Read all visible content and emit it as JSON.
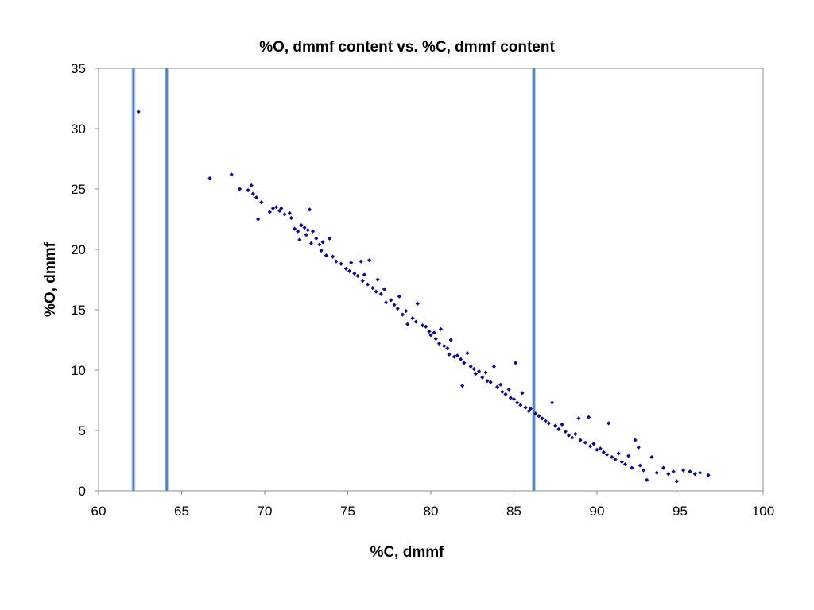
{
  "chart_data": {
    "type": "scatter",
    "title": "%O, dmmf content vs. %C, dmmf content",
    "xlabel": "%C, dmmf",
    "ylabel": "%O, dmmf",
    "xlim": [
      60,
      100
    ],
    "ylim": [
      0,
      35
    ],
    "x_ticks": [
      60,
      65,
      70,
      75,
      80,
      85,
      90,
      95,
      100
    ],
    "y_ticks": [
      0,
      5,
      10,
      15,
      20,
      25,
      30,
      35
    ],
    "grid": false,
    "legend": "none",
    "marker_color": "#0d0d7a",
    "reference_line_color": "#4f81bd",
    "vertical_reference_lines_x": [
      62.1,
      64.1,
      86.2
    ],
    "series": [
      {
        "marker": "diamond",
        "points": [
          [
            62.4,
            31.4
          ],
          [
            66.7,
            25.9
          ],
          [
            68.0,
            26.2
          ],
          [
            68.5,
            25.0
          ],
          [
            69.0,
            24.9
          ],
          [
            69.2,
            25.3
          ],
          [
            69.3,
            24.6
          ],
          [
            69.5,
            24.3
          ],
          [
            69.6,
            22.5
          ],
          [
            69.8,
            23.9
          ],
          [
            70.3,
            23.1
          ],
          [
            70.5,
            23.4
          ],
          [
            70.7,
            23.5
          ],
          [
            70.9,
            23.2
          ],
          [
            71.0,
            23.4
          ],
          [
            71.2,
            22.9
          ],
          [
            71.5,
            23.0
          ],
          [
            71.6,
            22.6
          ],
          [
            71.8,
            21.7
          ],
          [
            72.0,
            21.5
          ],
          [
            72.1,
            20.8
          ],
          [
            72.2,
            22.0
          ],
          [
            72.4,
            21.8
          ],
          [
            72.5,
            21.2
          ],
          [
            72.6,
            21.6
          ],
          [
            72.7,
            23.3
          ],
          [
            72.8,
            20.5
          ],
          [
            72.9,
            21.5
          ],
          [
            73.1,
            20.9
          ],
          [
            73.3,
            20.4
          ],
          [
            73.4,
            19.9
          ],
          [
            73.5,
            20.6
          ],
          [
            73.7,
            19.5
          ],
          [
            73.9,
            20.9
          ],
          [
            74.1,
            19.4
          ],
          [
            74.3,
            19.0
          ],
          [
            74.6,
            18.8
          ],
          [
            74.9,
            18.4
          ],
          [
            75.1,
            18.2
          ],
          [
            75.2,
            18.9
          ],
          [
            75.4,
            18.0
          ],
          [
            75.6,
            17.8
          ],
          [
            75.8,
            19.0
          ],
          [
            75.9,
            17.4
          ],
          [
            76.0,
            17.9
          ],
          [
            76.2,
            17.1
          ],
          [
            76.3,
            19.1
          ],
          [
            76.5,
            16.8
          ],
          [
            76.7,
            16.5
          ],
          [
            76.8,
            17.5
          ],
          [
            77.0,
            16.3
          ],
          [
            77.2,
            16.7
          ],
          [
            77.3,
            15.6
          ],
          [
            77.6,
            15.8
          ],
          [
            77.8,
            15.4
          ],
          [
            78.0,
            15.1
          ],
          [
            78.1,
            16.1
          ],
          [
            78.3,
            14.6
          ],
          [
            78.5,
            14.9
          ],
          [
            78.6,
            13.8
          ],
          [
            78.9,
            14.3
          ],
          [
            79.1,
            14.0
          ],
          [
            79.2,
            15.5
          ],
          [
            79.5,
            13.7
          ],
          [
            79.7,
            13.6
          ],
          [
            79.9,
            13.2
          ],
          [
            80.0,
            12.9
          ],
          [
            80.2,
            13.1
          ],
          [
            80.3,
            12.6
          ],
          [
            80.5,
            12.2
          ],
          [
            80.6,
            13.4
          ],
          [
            80.8,
            12.0
          ],
          [
            81.0,
            11.8
          ],
          [
            81.1,
            11.3
          ],
          [
            81.2,
            12.5
          ],
          [
            81.4,
            11.1
          ],
          [
            81.6,
            11.2
          ],
          [
            81.8,
            10.9
          ],
          [
            81.9,
            8.7
          ],
          [
            82.0,
            10.6
          ],
          [
            82.2,
            11.4
          ],
          [
            82.4,
            10.3
          ],
          [
            82.6,
            10.1
          ],
          [
            82.7,
            9.7
          ],
          [
            82.9,
            9.9
          ],
          [
            83.1,
            9.4
          ],
          [
            83.3,
            9.8
          ],
          [
            83.4,
            9.1
          ],
          [
            83.6,
            9.0
          ],
          [
            83.8,
            10.3
          ],
          [
            84.0,
            8.6
          ],
          [
            84.2,
            8.8
          ],
          [
            84.3,
            8.2
          ],
          [
            84.5,
            8.0
          ],
          [
            84.7,
            8.4
          ],
          [
            84.8,
            7.7
          ],
          [
            85.0,
            7.6
          ],
          [
            85.1,
            10.6
          ],
          [
            85.2,
            7.3
          ],
          [
            85.4,
            7.1
          ],
          [
            85.5,
            8.1
          ],
          [
            85.7,
            6.9
          ],
          [
            85.9,
            6.6
          ],
          [
            86.0,
            6.8
          ],
          [
            86.3,
            6.4
          ],
          [
            86.5,
            6.2
          ],
          [
            86.7,
            6.0
          ],
          [
            86.9,
            5.8
          ],
          [
            87.1,
            5.6
          ],
          [
            87.3,
            7.3
          ],
          [
            87.5,
            5.4
          ],
          [
            87.7,
            5.1
          ],
          [
            87.9,
            5.5
          ],
          [
            88.1,
            4.9
          ],
          [
            88.3,
            4.6
          ],
          [
            88.5,
            4.4
          ],
          [
            88.7,
            4.7
          ],
          [
            88.9,
            6.0
          ],
          [
            89.0,
            4.2
          ],
          [
            89.3,
            4.0
          ],
          [
            89.5,
            6.1
          ],
          [
            89.6,
            3.7
          ],
          [
            89.8,
            3.9
          ],
          [
            90.0,
            3.4
          ],
          [
            90.2,
            3.5
          ],
          [
            90.4,
            3.2
          ],
          [
            90.6,
            3.0
          ],
          [
            90.7,
            5.6
          ],
          [
            90.9,
            2.8
          ],
          [
            91.1,
            2.6
          ],
          [
            91.3,
            3.1
          ],
          [
            91.5,
            2.4
          ],
          [
            91.7,
            2.2
          ],
          [
            91.9,
            2.9
          ],
          [
            92.1,
            1.9
          ],
          [
            92.3,
            4.2
          ],
          [
            92.5,
            3.6
          ],
          [
            92.6,
            2.1
          ],
          [
            92.8,
            1.7
          ],
          [
            93.0,
            0.9
          ],
          [
            93.3,
            2.8
          ],
          [
            93.6,
            1.5
          ],
          [
            94.0,
            1.9
          ],
          [
            94.3,
            1.4
          ],
          [
            94.6,
            1.6
          ],
          [
            94.8,
            0.8
          ],
          [
            95.2,
            1.7
          ],
          [
            95.6,
            1.6
          ],
          [
            95.9,
            1.4
          ],
          [
            96.2,
            1.5
          ],
          [
            96.7,
            1.3
          ]
        ]
      }
    ]
  }
}
